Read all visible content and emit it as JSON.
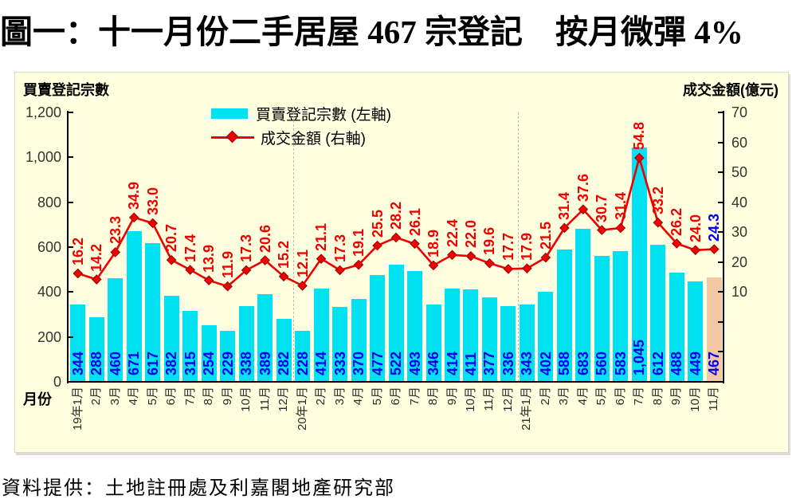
{
  "page": {
    "title": "圖一：十一月份二手居屋 467 宗登記　按月微彈 4%",
    "source": "資料提供：土地註冊處及利嘉閣地產研究部"
  },
  "chart_data": {
    "type": "combo-bar-line",
    "title": "圖一：十一月份二手居屋 467 宗登記 按月微彈 4%",
    "x_axis_label": "月份",
    "left_axis": {
      "title": "買賣登記宗數",
      "min": 0,
      "max": 1200,
      "tick_interval": 200,
      "tick_labels": [
        "0",
        "200",
        "400",
        "600",
        "800",
        "1,000",
        "1,200"
      ]
    },
    "right_axis": {
      "title": "成交金額(億元)",
      "shown_labels": [
        "10",
        "20",
        "30",
        "40",
        "50",
        "60",
        "70"
      ],
      "label_min": 0,
      "label_max": 70,
      "tick_interval": 10,
      "plot_min": -20,
      "plot_max": 70
    },
    "categories": [
      "19年1月",
      "2月",
      "3月",
      "4月",
      "5月",
      "6月",
      "7月",
      "8月",
      "9月",
      "10月",
      "11月",
      "12月",
      "20年1月",
      "2月",
      "3月",
      "4月",
      "5月",
      "6月",
      "7月",
      "8月",
      "9月",
      "10月",
      "11月",
      "12月",
      "21年1月",
      "2月",
      "3月",
      "4月",
      "5月",
      "6月",
      "7月",
      "8月",
      "9月",
      "10月",
      "11月"
    ],
    "series": [
      {
        "name": "買賣登記宗數 (左軸)",
        "type": "bar",
        "axis": "left",
        "values": [
          344,
          288,
          460,
          671,
          617,
          382,
          315,
          254,
          229,
          338,
          389,
          282,
          228,
          414,
          333,
          370,
          477,
          522,
          493,
          346,
          414,
          411,
          377,
          336,
          343,
          402,
          588,
          683,
          560,
          583,
          1045,
          612,
          488,
          449,
          467
        ],
        "labels": [
          "344",
          "288",
          "460",
          "671",
          "617",
          "382",
          "315",
          "254",
          "229",
          "338",
          "389",
          "282",
          "228",
          "414",
          "333",
          "370",
          "477",
          "522",
          "493",
          "346",
          "414",
          "411",
          "377",
          "336",
          "343",
          "402",
          "588",
          "683",
          "560",
          "583",
          "1,045",
          "612",
          "488",
          "449",
          "467"
        ],
        "color": "#00E2F2",
        "highlight_index": 34,
        "highlight_color": "#F2C7A2",
        "label_color": "#0000EE"
      },
      {
        "name": "成交金額 (右軸)",
        "type": "line",
        "axis": "right",
        "values": [
          16.2,
          14.2,
          23.3,
          34.9,
          33.0,
          20.7,
          17.4,
          13.9,
          11.9,
          17.3,
          20.6,
          15.2,
          12.1,
          21.1,
          17.3,
          19.1,
          25.5,
          28.2,
          26.1,
          18.9,
          22.4,
          22.0,
          19.6,
          17.7,
          17.9,
          21.5,
          31.4,
          37.6,
          30.7,
          31.4,
          54.8,
          33.2,
          26.2,
          24.0,
          24.3
        ],
        "labels": [
          "16.2",
          "14.2",
          "23.3",
          "34.9",
          "33.0",
          "20.7",
          "17.4",
          "13.9",
          "11.9",
          "17.3",
          "20.6",
          "15.2",
          "12.1",
          "21.1",
          "17.3",
          "19.1",
          "25.5",
          "28.2",
          "26.1",
          "18.9",
          "22.4",
          "22.0",
          "19.6",
          "17.7",
          "17.9",
          "21.5",
          "31.4",
          "37.6",
          "30.7",
          "31.4",
          "54.8",
          "33.2",
          "26.2",
          "24.0",
          "24.3"
        ],
        "color": "#EE0000",
        "marker_stroke": "#990000",
        "label_color": "#EE0000",
        "last_label_color": "#0000EE"
      }
    ],
    "year_separator_before_index": [
      12,
      24
    ],
    "legend_position": "top-center-left",
    "grid": "off",
    "panel_background": "#FFFFD9"
  }
}
